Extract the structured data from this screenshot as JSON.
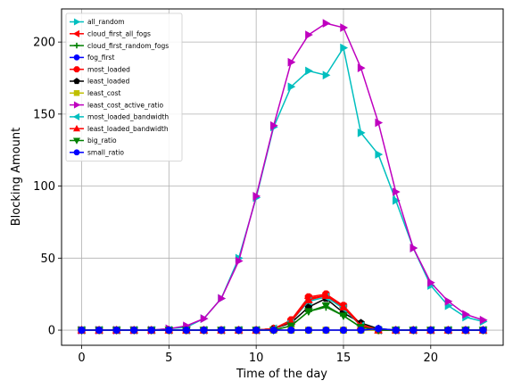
{
  "chart_data": {
    "type": "line",
    "title": "",
    "xlabel": "Time of the day",
    "ylabel": "Blocking Amount",
    "xlim": [
      -1.15,
      24.15
    ],
    "ylim": [
      -10.5,
      223
    ],
    "x_ticks": [
      0,
      5,
      10,
      15,
      20
    ],
    "y_ticks": [
      0,
      50,
      100,
      150,
      200
    ],
    "grid": true,
    "legend_position": "upper-left",
    "x": [
      0,
      1,
      2,
      3,
      4,
      5,
      6,
      7,
      8,
      9,
      10,
      11,
      12,
      13,
      14,
      15,
      16,
      17,
      18,
      19,
      20,
      21,
      22,
      23
    ],
    "series": [
      {
        "name": "all_random",
        "color": "#00bfbf",
        "marker": "triangle-right",
        "values": [
          0,
          0,
          0,
          0,
          0,
          1,
          2,
          8,
          22,
          50,
          92,
          141,
          169,
          180,
          177,
          196,
          137,
          122,
          90,
          57,
          31,
          17,
          9,
          6
        ]
      },
      {
        "name": "cloud_first_all_fogs",
        "color": "#ff0000",
        "marker": "triangle-left",
        "values": [
          0,
          0,
          0,
          0,
          0,
          0,
          0,
          0,
          0,
          0,
          0,
          1,
          6,
          22,
          24,
          16,
          3,
          0,
          0,
          0,
          0,
          0,
          0,
          0
        ]
      },
      {
        "name": "cloud_first_random_fogs",
        "color": "#008000",
        "marker": "plus",
        "values": [
          0,
          0,
          0,
          0,
          0,
          0,
          0,
          0,
          0,
          0,
          0,
          0,
          3,
          13,
          16,
          10,
          2,
          0,
          0,
          0,
          0,
          0,
          0,
          0
        ]
      },
      {
        "name": "fog_first",
        "color": "#0000ff",
        "marker": "circle",
        "values": [
          0,
          0,
          0,
          0,
          0,
          0,
          0,
          0,
          0,
          0,
          0,
          0,
          0,
          0,
          0,
          0,
          0,
          0,
          0,
          0,
          0,
          0,
          0,
          0
        ]
      },
      {
        "name": "most_loaded",
        "color": "#ff0000",
        "marker": "octagon",
        "values": [
          0,
          0,
          0,
          0,
          0,
          0,
          0,
          0,
          0,
          0,
          0,
          1,
          7,
          23,
          25,
          17,
          4,
          0,
          0,
          0,
          0,
          0,
          0,
          0
        ]
      },
      {
        "name": "least_loaded",
        "color": "#000000",
        "marker": "pentagon",
        "values": [
          0,
          0,
          0,
          0,
          0,
          0,
          0,
          0,
          0,
          0,
          0,
          1,
          5,
          16,
          22,
          12,
          5,
          1,
          0,
          0,
          0,
          0,
          0,
          0
        ]
      },
      {
        "name": "least_cost",
        "color": "#bfbf00",
        "marker": "square",
        "values": [
          0,
          0,
          0,
          0,
          0,
          0,
          0,
          0,
          0,
          0,
          0,
          0,
          0,
          0,
          0,
          0,
          0,
          0,
          0,
          0,
          0,
          0,
          0,
          0
        ]
      },
      {
        "name": "least_cost_active_ratio",
        "color": "#bf00bf",
        "marker": "triangle-right",
        "values": [
          0,
          0,
          0,
          0,
          0,
          1,
          3,
          8,
          22,
          48,
          93,
          142,
          186,
          205,
          213,
          210,
          182,
          144,
          96,
          57,
          33,
          20,
          11,
          7
        ]
      },
      {
        "name": "most_loaded_bandwidth",
        "color": "#00bfbf",
        "marker": "triangle-left",
        "values": [
          0,
          0,
          0,
          0,
          0,
          0,
          0,
          0,
          0,
          0,
          0,
          1,
          6,
          20,
          23,
          15,
          3,
          0,
          0,
          0,
          0,
          0,
          0,
          0
        ]
      },
      {
        "name": "least_loaded_bandwidth",
        "color": "#ff0000",
        "marker": "triangle-up",
        "values": [
          0,
          0,
          0,
          0,
          0,
          0,
          0,
          0,
          0,
          0,
          0,
          1,
          6,
          21,
          24,
          16,
          3,
          0,
          0,
          0,
          0,
          0,
          0,
          0
        ]
      },
      {
        "name": "big_ratio",
        "color": "#008000",
        "marker": "triangle-down",
        "values": [
          0,
          0,
          0,
          0,
          0,
          0,
          0,
          0,
          0,
          0,
          0,
          0,
          3,
          13,
          17,
          10,
          2,
          0,
          0,
          0,
          0,
          0,
          0,
          0
        ]
      },
      {
        "name": "small_ratio",
        "color": "#0000ff",
        "marker": "circle",
        "values": [
          0,
          0,
          0,
          0,
          0,
          0,
          0,
          0,
          0,
          0,
          0,
          0,
          0,
          0,
          0,
          0,
          0,
          1,
          0,
          0,
          0,
          0,
          0,
          0
        ]
      }
    ]
  }
}
